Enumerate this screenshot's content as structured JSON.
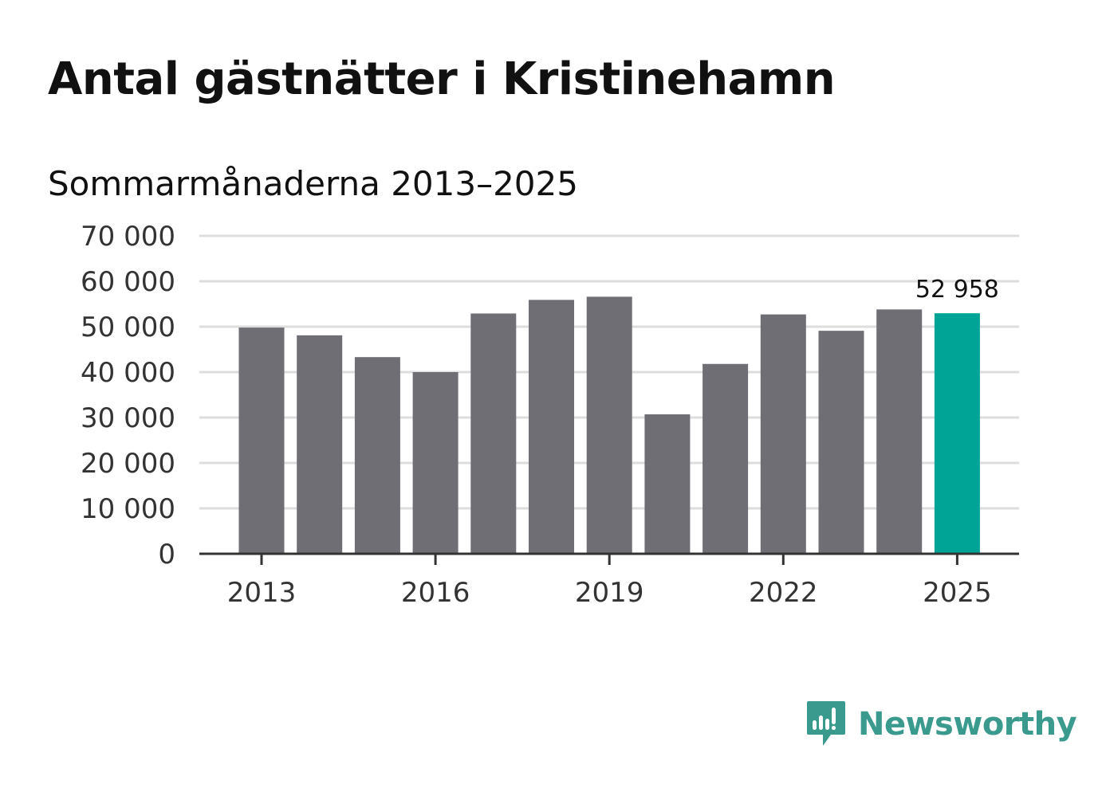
{
  "title": "Antal gästnätter i Kristinehamn",
  "subtitle": "Sommarmånaderna 2013–2025",
  "brand": {
    "name": "Newsworthy",
    "color": "#3a9a8e"
  },
  "colors": {
    "bar": "#6f6e75",
    "highlight": "#00a497",
    "grid": "#dddddd",
    "axis": "#333333"
  },
  "chart_data": {
    "type": "bar",
    "categories": [
      "2013",
      "2014",
      "2015",
      "2016",
      "2017",
      "2018",
      "2019",
      "2020",
      "2021",
      "2022",
      "2023",
      "2024",
      "2025"
    ],
    "values": [
      49800,
      48100,
      43300,
      40000,
      52900,
      55900,
      56600,
      30700,
      41800,
      52700,
      49100,
      53800,
      52958
    ],
    "highlight_index": 12,
    "data_labels": [
      {
        "index": 12,
        "text": "52 958"
      }
    ],
    "ylim": [
      0,
      70000
    ],
    "y_ticks": [
      0,
      10000,
      20000,
      30000,
      40000,
      50000,
      60000,
      70000
    ],
    "y_tick_labels": [
      "0",
      "10 000",
      "20 000",
      "30 000",
      "40 000",
      "50 000",
      "60 000",
      "70 000"
    ],
    "x_tick_labels": [
      "2013",
      "2016",
      "2019",
      "2022",
      "2025"
    ],
    "grid": true,
    "legend": "none"
  }
}
